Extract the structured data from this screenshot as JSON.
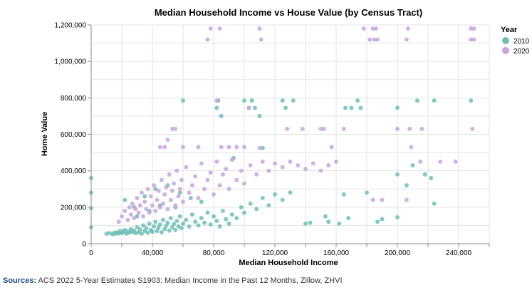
{
  "chart_data": {
    "type": "scatter",
    "title": "Median Household Income vs House Value (by Census Tract)",
    "xlabel": "Median Household Income",
    "ylabel": "Home Value",
    "xlim": [
      0,
      260000
    ],
    "ylim": [
      0,
      1200000
    ],
    "x_ticks": [
      0,
      40000,
      80000,
      120000,
      160000,
      200000,
      240000
    ],
    "y_ticks": [
      0,
      200000,
      400000,
      600000,
      800000,
      1000000,
      1200000
    ],
    "x_tick_labels": [
      "0",
      "40,000",
      "80,000",
      "120,000",
      "160,000",
      "200,000",
      "240,000"
    ],
    "y_tick_labels": [
      "0",
      "200,000",
      "400,000",
      "600,000",
      "800,000",
      "1,000,000",
      "1,200,000"
    ],
    "grid": true,
    "legend": {
      "title": "Year",
      "position": "top-right"
    },
    "colors": {
      "2010": "#6fbfb5",
      "2020": "#c7a6e0"
    },
    "series": [
      {
        "name": "2010",
        "points": [
          [
            0,
            360000
          ],
          [
            0,
            280000
          ],
          [
            0,
            195000
          ],
          [
            0,
            90000
          ],
          [
            10000,
            55000
          ],
          [
            12000,
            58000
          ],
          [
            14000,
            52000
          ],
          [
            15000,
            60000
          ],
          [
            16000,
            55000
          ],
          [
            17000,
            62000
          ],
          [
            18000,
            56000
          ],
          [
            19000,
            70000
          ],
          [
            20000,
            58000
          ],
          [
            21000,
            64000
          ],
          [
            22000,
            75000
          ],
          [
            23000,
            55000
          ],
          [
            24000,
            68000
          ],
          [
            25000,
            60000
          ],
          [
            26000,
            80000
          ],
          [
            27000,
            65000
          ],
          [
            28000,
            72000
          ],
          [
            29000,
            58000
          ],
          [
            30000,
            90000
          ],
          [
            31000,
            62000
          ],
          [
            32000,
            78000
          ],
          [
            33000,
            55000
          ],
          [
            34000,
            100000
          ],
          [
            35000,
            70000
          ],
          [
            36000,
            85000
          ],
          [
            37000,
            60000
          ],
          [
            38000,
            110000
          ],
          [
            39000,
            75000
          ],
          [
            40000,
            65000
          ],
          [
            41000,
            95000
          ],
          [
            42000,
            120000
          ],
          [
            43000,
            70000
          ],
          [
            44000,
            88000
          ],
          [
            45000,
            105000
          ],
          [
            46000,
            62000
          ],
          [
            47000,
            130000
          ],
          [
            48000,
            80000
          ],
          [
            49000,
            98000
          ],
          [
            50000,
            115000
          ],
          [
            51000,
            72000
          ],
          [
            52000,
            140000
          ],
          [
            53000,
            90000
          ],
          [
            54000,
            108000
          ],
          [
            55000,
            75000
          ],
          [
            56000,
            125000
          ],
          [
            57000,
            95000
          ],
          [
            58000,
            150000
          ],
          [
            59000,
            85000
          ],
          [
            60000,
            110000
          ],
          [
            62000,
            130000
          ],
          [
            64000,
            95000
          ],
          [
            66000,
            160000
          ],
          [
            68000,
            120000
          ],
          [
            70000,
            100000
          ],
          [
            72000,
            140000
          ],
          [
            74000,
            115000
          ],
          [
            76000,
            170000
          ],
          [
            78000,
            105000
          ],
          [
            80000,
            150000
          ],
          [
            82000,
            125000
          ],
          [
            84000,
            95000
          ],
          [
            86000,
            180000
          ],
          [
            88000,
            135000
          ],
          [
            90000,
            110000
          ],
          [
            92000,
            160000
          ],
          [
            95000,
            140000
          ],
          [
            98000,
            200000
          ],
          [
            100000,
            170000
          ],
          [
            104000,
            220000
          ],
          [
            108000,
            190000
          ],
          [
            112000,
            250000
          ],
          [
            116000,
            210000
          ],
          [
            120000,
            270000
          ],
          [
            125000,
            240000
          ],
          [
            130000,
            280000
          ],
          [
            22000,
            240000
          ],
          [
            28000,
            200000
          ],
          [
            35000,
            260000
          ],
          [
            42000,
            300000
          ],
          [
            50000,
            320000
          ],
          [
            58000,
            280000
          ],
          [
            65000,
            250000
          ],
          [
            72000,
            230000
          ],
          [
            30000,
            150000
          ],
          [
            38000,
            180000
          ],
          [
            45000,
            210000
          ],
          [
            55000,
            200000
          ],
          [
            60000,
            785000
          ],
          [
            83000,
            785000
          ],
          [
            82000,
            745000
          ],
          [
            85000,
            700000
          ],
          [
            93000,
            470000
          ],
          [
            100000,
            785000
          ],
          [
            103000,
            745000
          ],
          [
            105000,
            785000
          ],
          [
            107000,
            745000
          ],
          [
            110000,
            700000
          ],
          [
            112000,
            525000
          ],
          [
            125000,
            785000
          ],
          [
            127000,
            745000
          ],
          [
            132000,
            785000
          ],
          [
            140000,
            110000
          ],
          [
            143000,
            115000
          ],
          [
            153000,
            150000
          ],
          [
            155000,
            120000
          ],
          [
            162000,
            110000
          ],
          [
            165000,
            270000
          ],
          [
            166000,
            745000
          ],
          [
            168000,
            140000
          ],
          [
            170000,
            745000
          ],
          [
            174000,
            785000
          ],
          [
            176000,
            745000
          ],
          [
            180000,
            280000
          ],
          [
            187000,
            120000
          ],
          [
            190000,
            135000
          ],
          [
            200000,
            745000
          ],
          [
            200000,
            380000
          ],
          [
            200000,
            145000
          ],
          [
            206000,
            320000
          ],
          [
            210000,
            430000
          ],
          [
            213000,
            785000
          ],
          [
            218000,
            380000
          ],
          [
            222000,
            360000
          ],
          [
            224000,
            220000
          ],
          [
            224000,
            785000
          ],
          [
            248000,
            785000
          ]
        ]
      },
      {
        "name": "2020",
        "points": [
          [
            18000,
            120000
          ],
          [
            20000,
            150000
          ],
          [
            22000,
            180000
          ],
          [
            24000,
            130000
          ],
          [
            25000,
            200000
          ],
          [
            26000,
            160000
          ],
          [
            27000,
            220000
          ],
          [
            28000,
            140000
          ],
          [
            29000,
            190000
          ],
          [
            30000,
            250000
          ],
          [
            31000,
            170000
          ],
          [
            32000,
            210000
          ],
          [
            33000,
            280000
          ],
          [
            34000,
            150000
          ],
          [
            35000,
            230000
          ],
          [
            36000,
            190000
          ],
          [
            37000,
            300000
          ],
          [
            38000,
            170000
          ],
          [
            39000,
            260000
          ],
          [
            40000,
            210000
          ],
          [
            41000,
            320000
          ],
          [
            42000,
            180000
          ],
          [
            43000,
            240000
          ],
          [
            44000,
            290000
          ],
          [
            45000,
            200000
          ],
          [
            46000,
            350000
          ],
          [
            47000,
            220000
          ],
          [
            48000,
            270000
          ],
          [
            49000,
            310000
          ],
          [
            50000,
            190000
          ],
          [
            51000,
            380000
          ],
          [
            52000,
            240000
          ],
          [
            53000,
            290000
          ],
          [
            54000,
            330000
          ],
          [
            55000,
            210000
          ],
          [
            56000,
            400000
          ],
          [
            57000,
            260000
          ],
          [
            58000,
            300000
          ],
          [
            59000,
            350000
          ],
          [
            60000,
            230000
          ],
          [
            62000,
            420000
          ],
          [
            64000,
            280000
          ],
          [
            66000,
            320000
          ],
          [
            68000,
            370000
          ],
          [
            70000,
            250000
          ],
          [
            72000,
            440000
          ],
          [
            74000,
            300000
          ],
          [
            76000,
            350000
          ],
          [
            78000,
            390000
          ],
          [
            80000,
            270000
          ],
          [
            82000,
            450000
          ],
          [
            84000,
            320000
          ],
          [
            86000,
            380000
          ],
          [
            88000,
            410000
          ],
          [
            90000,
            300000
          ],
          [
            92000,
            460000
          ],
          [
            95000,
            350000
          ],
          [
            98000,
            400000
          ],
          [
            100000,
            330000
          ],
          [
            104000,
            430000
          ],
          [
            108000,
            380000
          ],
          [
            112000,
            450000
          ],
          [
            116000,
            400000
          ],
          [
            120000,
            440000
          ],
          [
            125000,
            420000
          ],
          [
            130000,
            450000
          ],
          [
            135000,
            430000
          ],
          [
            140000,
            410000
          ],
          [
            145000,
            440000
          ],
          [
            150000,
            400000
          ],
          [
            155000,
            430000
          ],
          [
            160000,
            450000
          ],
          [
            45000,
            530000
          ],
          [
            48000,
            530000
          ],
          [
            50000,
            570000
          ],
          [
            53000,
            630000
          ],
          [
            55000,
            630000
          ],
          [
            60000,
            530000
          ],
          [
            70000,
            530000
          ],
          [
            85000,
            530000
          ],
          [
            90000,
            530000
          ],
          [
            95000,
            530000
          ],
          [
            100000,
            530000
          ],
          [
            110000,
            525000
          ],
          [
            76000,
            1120000
          ],
          [
            78000,
            1180000
          ],
          [
            84000,
            1180000
          ],
          [
            82000,
            785000
          ],
          [
            103000,
            745000
          ],
          [
            110000,
            1180000
          ],
          [
            111000,
            1120000
          ],
          [
            128000,
            630000
          ],
          [
            138000,
            630000
          ],
          [
            150000,
            630000
          ],
          [
            152000,
            630000
          ],
          [
            157000,
            530000
          ],
          [
            165000,
            630000
          ],
          [
            178000,
            1180000
          ],
          [
            182000,
            1120000
          ],
          [
            184000,
            1180000
          ],
          [
            185000,
            1120000
          ],
          [
            186000,
            1180000
          ],
          [
            187000,
            1120000
          ],
          [
            200000,
            630000
          ],
          [
            206000,
            1120000
          ],
          [
            207000,
            1180000
          ],
          [
            208000,
            630000
          ],
          [
            209000,
            530000
          ],
          [
            215000,
            450000
          ],
          [
            216000,
            630000
          ],
          [
            228000,
            450000
          ],
          [
            238000,
            450000
          ],
          [
            248000,
            1180000
          ],
          [
            248000,
            1120000
          ],
          [
            249000,
            630000
          ],
          [
            250000,
            1180000
          ],
          [
            250000,
            1120000
          ],
          [
            184000,
            240000
          ],
          [
            190000,
            240000
          ],
          [
            206000,
            240000
          ]
        ]
      }
    ]
  },
  "source": {
    "label": "Sources:",
    "text": "ACS 2022 5-Year Estimates S1903: Median Income in the Past 12 Months, Zillow, ZHVI"
  }
}
